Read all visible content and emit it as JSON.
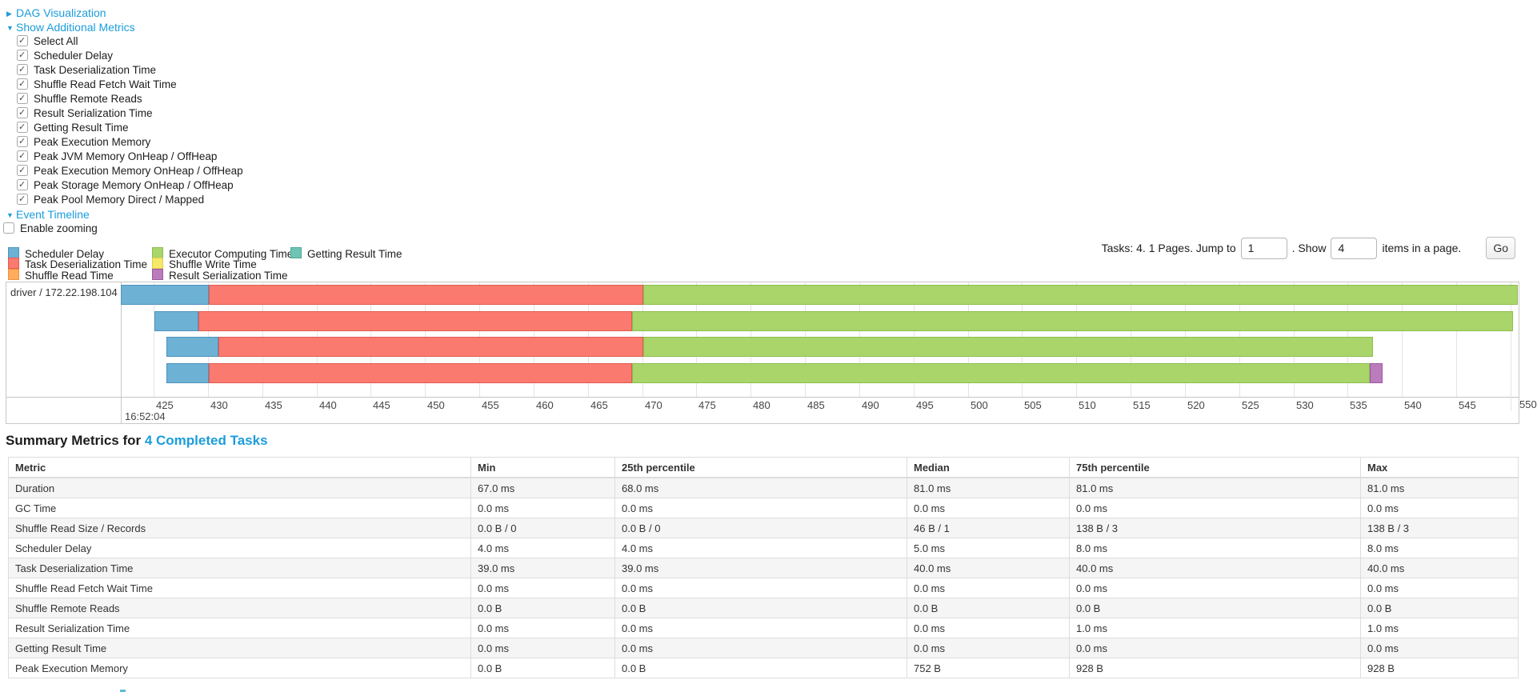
{
  "colors": {
    "link": "#1b9ddb",
    "scheduler_delay": {
      "fill": "#6db1d4",
      "border": "#4d94be"
    },
    "task_deserialization": {
      "fill": "#fb7a6f",
      "border": "#e25a50"
    },
    "shuffle_read": {
      "fill": "#ffac5e",
      "border": "#ef9141"
    },
    "executor_computing": {
      "fill": "#a9d56b",
      "border": "#8dbe4d"
    },
    "shuffle_write": {
      "fill": "#f6e868",
      "border": "#e0ce4e"
    },
    "result_serialization": {
      "fill": "#ba7cbb",
      "border": "#a156a3"
    },
    "getting_result": {
      "fill": "#6ec4b2",
      "border": "#4fa898"
    }
  },
  "controls": {
    "dag_label": "DAG Visualization",
    "metrics_label": "Show Additional Metrics",
    "metric_items": [
      {
        "label": "Select All",
        "checked": true
      },
      {
        "label": "Scheduler Delay",
        "checked": true
      },
      {
        "label": "Task Deserialization Time",
        "checked": true
      },
      {
        "label": "Shuffle Read Fetch Wait Time",
        "checked": true
      },
      {
        "label": "Shuffle Remote Reads",
        "checked": true
      },
      {
        "label": "Result Serialization Time",
        "checked": true
      },
      {
        "label": "Getting Result Time",
        "checked": true
      },
      {
        "label": "Peak Execution Memory",
        "checked": true
      },
      {
        "label": "Peak JVM Memory OnHeap / OffHeap",
        "checked": true
      },
      {
        "label": "Peak Execution Memory OnHeap / OffHeap",
        "checked": true
      },
      {
        "label": "Peak Storage Memory OnHeap / OffHeap",
        "checked": true
      },
      {
        "label": "Peak Pool Memory Direct / Mapped",
        "checked": true
      }
    ],
    "event_timeline_label": "Event Timeline",
    "enable_zooming": {
      "label": "Enable zooming",
      "checked": false
    }
  },
  "legend": {
    "items": [
      {
        "label": "Scheduler Delay",
        "color_key": "scheduler_delay",
        "col": 0,
        "row": 0
      },
      {
        "label": "Task Deserialization Time",
        "color_key": "task_deserialization",
        "col": 0,
        "row": 1
      },
      {
        "label": "Shuffle Read Time",
        "color_key": "shuffle_read",
        "col": 0,
        "row": 2
      },
      {
        "label": "Executor Computing Time",
        "color_key": "executor_computing",
        "col": 1,
        "row": 0
      },
      {
        "label": "Shuffle Write Time",
        "color_key": "shuffle_write",
        "col": 1,
        "row": 1
      },
      {
        "label": "Result Serialization Time",
        "color_key": "result_serialization",
        "col": 1,
        "row": 2
      },
      {
        "label": "Getting Result Time",
        "color_key": "getting_result",
        "col": 2,
        "row": 0
      }
    ]
  },
  "pagination": {
    "prefix": "Tasks: 4. 1 Pages. Jump to",
    "jump_value": "1",
    "show_label": ". Show",
    "show_value": "4",
    "items_label": "items in a page.",
    "go_label": "Go"
  },
  "chart_data": {
    "type": "timeline",
    "row_label": "driver / 172.22.198.104",
    "x_axis": {
      "min": 425,
      "max": 550,
      "step": 5,
      "ticks": [
        425,
        430,
        435,
        440,
        445,
        450,
        455,
        460,
        465,
        470,
        475,
        480,
        485,
        490,
        495,
        500,
        505,
        510,
        515,
        520,
        525,
        530,
        535,
        540,
        545,
        550
      ],
      "time_label": "16:52:04",
      "unit": "milliseconds within second 16:52:04"
    },
    "bars": [
      {
        "task": 0,
        "segments": [
          {
            "name": "scheduler-delay",
            "color_key": "scheduler_delay",
            "from": 422.0,
            "to": 430.1
          },
          {
            "name": "task-deserialization",
            "color_key": "task_deserialization",
            "from": 430.1,
            "to": 470.1
          },
          {
            "name": "executor-computing",
            "color_key": "executor_computing",
            "from": 470.1,
            "to": 550.7
          }
        ]
      },
      {
        "task": 1,
        "segments": [
          {
            "name": "scheduler-delay",
            "color_key": "scheduler_delay",
            "from": 425.1,
            "to": 429.1
          },
          {
            "name": "task-deserialization",
            "color_key": "task_deserialization",
            "from": 429.1,
            "to": 469.1
          },
          {
            "name": "executor-computing",
            "color_key": "executor_computing",
            "from": 469.1,
            "to": 550.2
          }
        ]
      },
      {
        "task": 2,
        "segments": [
          {
            "name": "scheduler-delay",
            "color_key": "scheduler_delay",
            "from": 426.2,
            "to": 431.0
          },
          {
            "name": "task-deserialization",
            "color_key": "task_deserialization",
            "from": 431.0,
            "to": 470.1
          },
          {
            "name": "executor-computing",
            "color_key": "executor_computing",
            "from": 470.1,
            "to": 537.3
          }
        ]
      },
      {
        "task": 3,
        "segments": [
          {
            "name": "scheduler-delay",
            "color_key": "scheduler_delay",
            "from": 426.2,
            "to": 430.1
          },
          {
            "name": "task-deserialization",
            "color_key": "task_deserialization",
            "from": 430.1,
            "to": 469.1
          },
          {
            "name": "executor-computing",
            "color_key": "executor_computing",
            "from": 469.1,
            "to": 537.0
          },
          {
            "name": "result-serialization",
            "color_key": "result_serialization",
            "from": 537.0,
            "to": 538.2
          }
        ]
      }
    ]
  },
  "summary": {
    "heading_prefix": "Summary Metrics for ",
    "heading_link": "4 Completed Tasks",
    "table": {
      "headers": [
        "Metric",
        "Min",
        "25th percentile",
        "Median",
        "75th percentile",
        "Max"
      ],
      "rows": [
        {
          "metric": "Duration",
          "values": [
            "67.0 ms",
            "68.0 ms",
            "81.0 ms",
            "81.0 ms",
            "81.0 ms"
          ]
        },
        {
          "metric": "GC Time",
          "values": [
            "0.0 ms",
            "0.0 ms",
            "0.0 ms",
            "0.0 ms",
            "0.0 ms"
          ]
        },
        {
          "metric": "Shuffle Read Size / Records",
          "values": [
            "0.0 B / 0",
            "0.0 B / 0",
            "46 B / 1",
            "138 B / 3",
            "138 B / 3"
          ]
        },
        {
          "metric": "Scheduler Delay",
          "values": [
            "4.0 ms",
            "4.0 ms",
            "5.0 ms",
            "8.0 ms",
            "8.0 ms"
          ]
        },
        {
          "metric": "Task Deserialization Time",
          "values": [
            "39.0 ms",
            "39.0 ms",
            "40.0 ms",
            "40.0 ms",
            "40.0 ms"
          ]
        },
        {
          "metric": "Shuffle Read Fetch Wait Time",
          "values": [
            "0.0 ms",
            "0.0 ms",
            "0.0 ms",
            "0.0 ms",
            "0.0 ms"
          ]
        },
        {
          "metric": "Shuffle Remote Reads",
          "values": [
            "0.0 B",
            "0.0 B",
            "0.0 B",
            "0.0 B",
            "0.0 B"
          ]
        },
        {
          "metric": "Result Serialization Time",
          "values": [
            "0.0 ms",
            "0.0 ms",
            "0.0 ms",
            "1.0 ms",
            "1.0 ms"
          ]
        },
        {
          "metric": "Getting Result Time",
          "values": [
            "0.0 ms",
            "0.0 ms",
            "0.0 ms",
            "0.0 ms",
            "0.0 ms"
          ]
        },
        {
          "metric": "Peak Execution Memory",
          "values": [
            "0.0 B",
            "0.0 B",
            "752 B",
            "928 B",
            "928 B"
          ]
        }
      ]
    }
  }
}
